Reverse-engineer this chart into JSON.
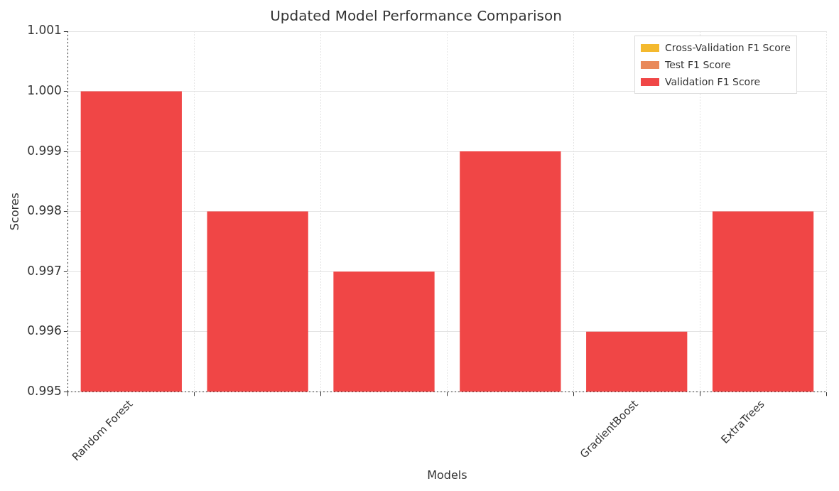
{
  "chart_data": {
    "type": "bar",
    "title": "Updated Model Performance Comparison",
    "xlabel": "Models",
    "ylabel": "Scores",
    "categories": [
      "Random Forest",
      null,
      null,
      null,
      "GradientBoost",
      "ExtraTrees"
    ],
    "series": [
      {
        "name": "Cross-Validation F1 Score",
        "color": "#f4b92e",
        "values": [
          null,
          null,
          null,
          null,
          null,
          null
        ]
      },
      {
        "name": "Test F1 Score",
        "color": "#e9895a",
        "values": [
          null,
          null,
          null,
          null,
          null,
          null
        ]
      },
      {
        "name": "Validation F1 Score",
        "color": "#f04646",
        "values": [
          1.0,
          0.998,
          0.997,
          0.999,
          0.996,
          0.998
        ]
      }
    ],
    "ylim": [
      0.995,
      1.001
    ],
    "yticks": [
      0.995,
      0.996,
      0.997,
      0.998,
      0.999,
      "1.000",
      1.001
    ],
    "grid": true,
    "legend": "top right"
  }
}
